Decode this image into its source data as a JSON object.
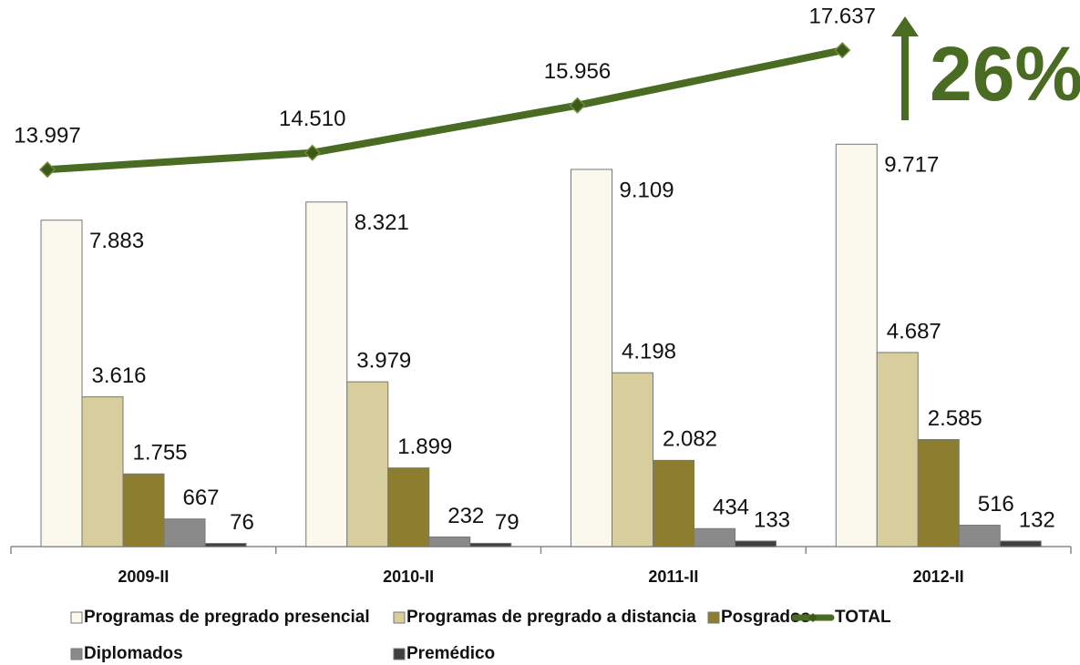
{
  "chart_data": {
    "type": "bar",
    "categories": [
      "2009-II",
      "2010-II",
      "2011-II",
      "2012-II"
    ],
    "series": [
      {
        "name": "Programas de pregrado presencial",
        "color": "#fbf9ee",
        "values": [
          7883,
          8321,
          9109,
          9717
        ],
        "value_labels": [
          "7.883",
          "8.321",
          "9.109",
          "9.717"
        ]
      },
      {
        "name": "Programas de pregrado a distancia",
        "color": "#d7cd9d",
        "values": [
          3616,
          3979,
          4198,
          4687
        ],
        "value_labels": [
          "3.616",
          "3.979",
          "4.198",
          "4.687"
        ]
      },
      {
        "name": "Posgrados",
        "color": "#8c7e2e",
        "values": [
          1755,
          1899,
          2082,
          2585
        ],
        "value_labels": [
          "1.755",
          "1.899",
          "2.082",
          "2.585"
        ]
      },
      {
        "name": "TOTAL",
        "type": "line",
        "axis": "y2",
        "color": "#4a6b22",
        "values": [
          13997,
          14510,
          15956,
          17637
        ],
        "value_labels": [
          "13.997",
          "14.510",
          "15.956",
          "17.637"
        ]
      },
      {
        "name": "Diplomados",
        "color": "#8a8a8a",
        "values": [
          667,
          232,
          434,
          516
        ]
      },
      {
        "name": "Premédico",
        "color": "#3f3f3f",
        "values": [
          76,
          79,
          133,
          132
        ]
      }
    ],
    "ylim": [
      0,
      13200
    ],
    "y2lim": [
      2500,
      19170
    ],
    "annotation": "26%"
  }
}
